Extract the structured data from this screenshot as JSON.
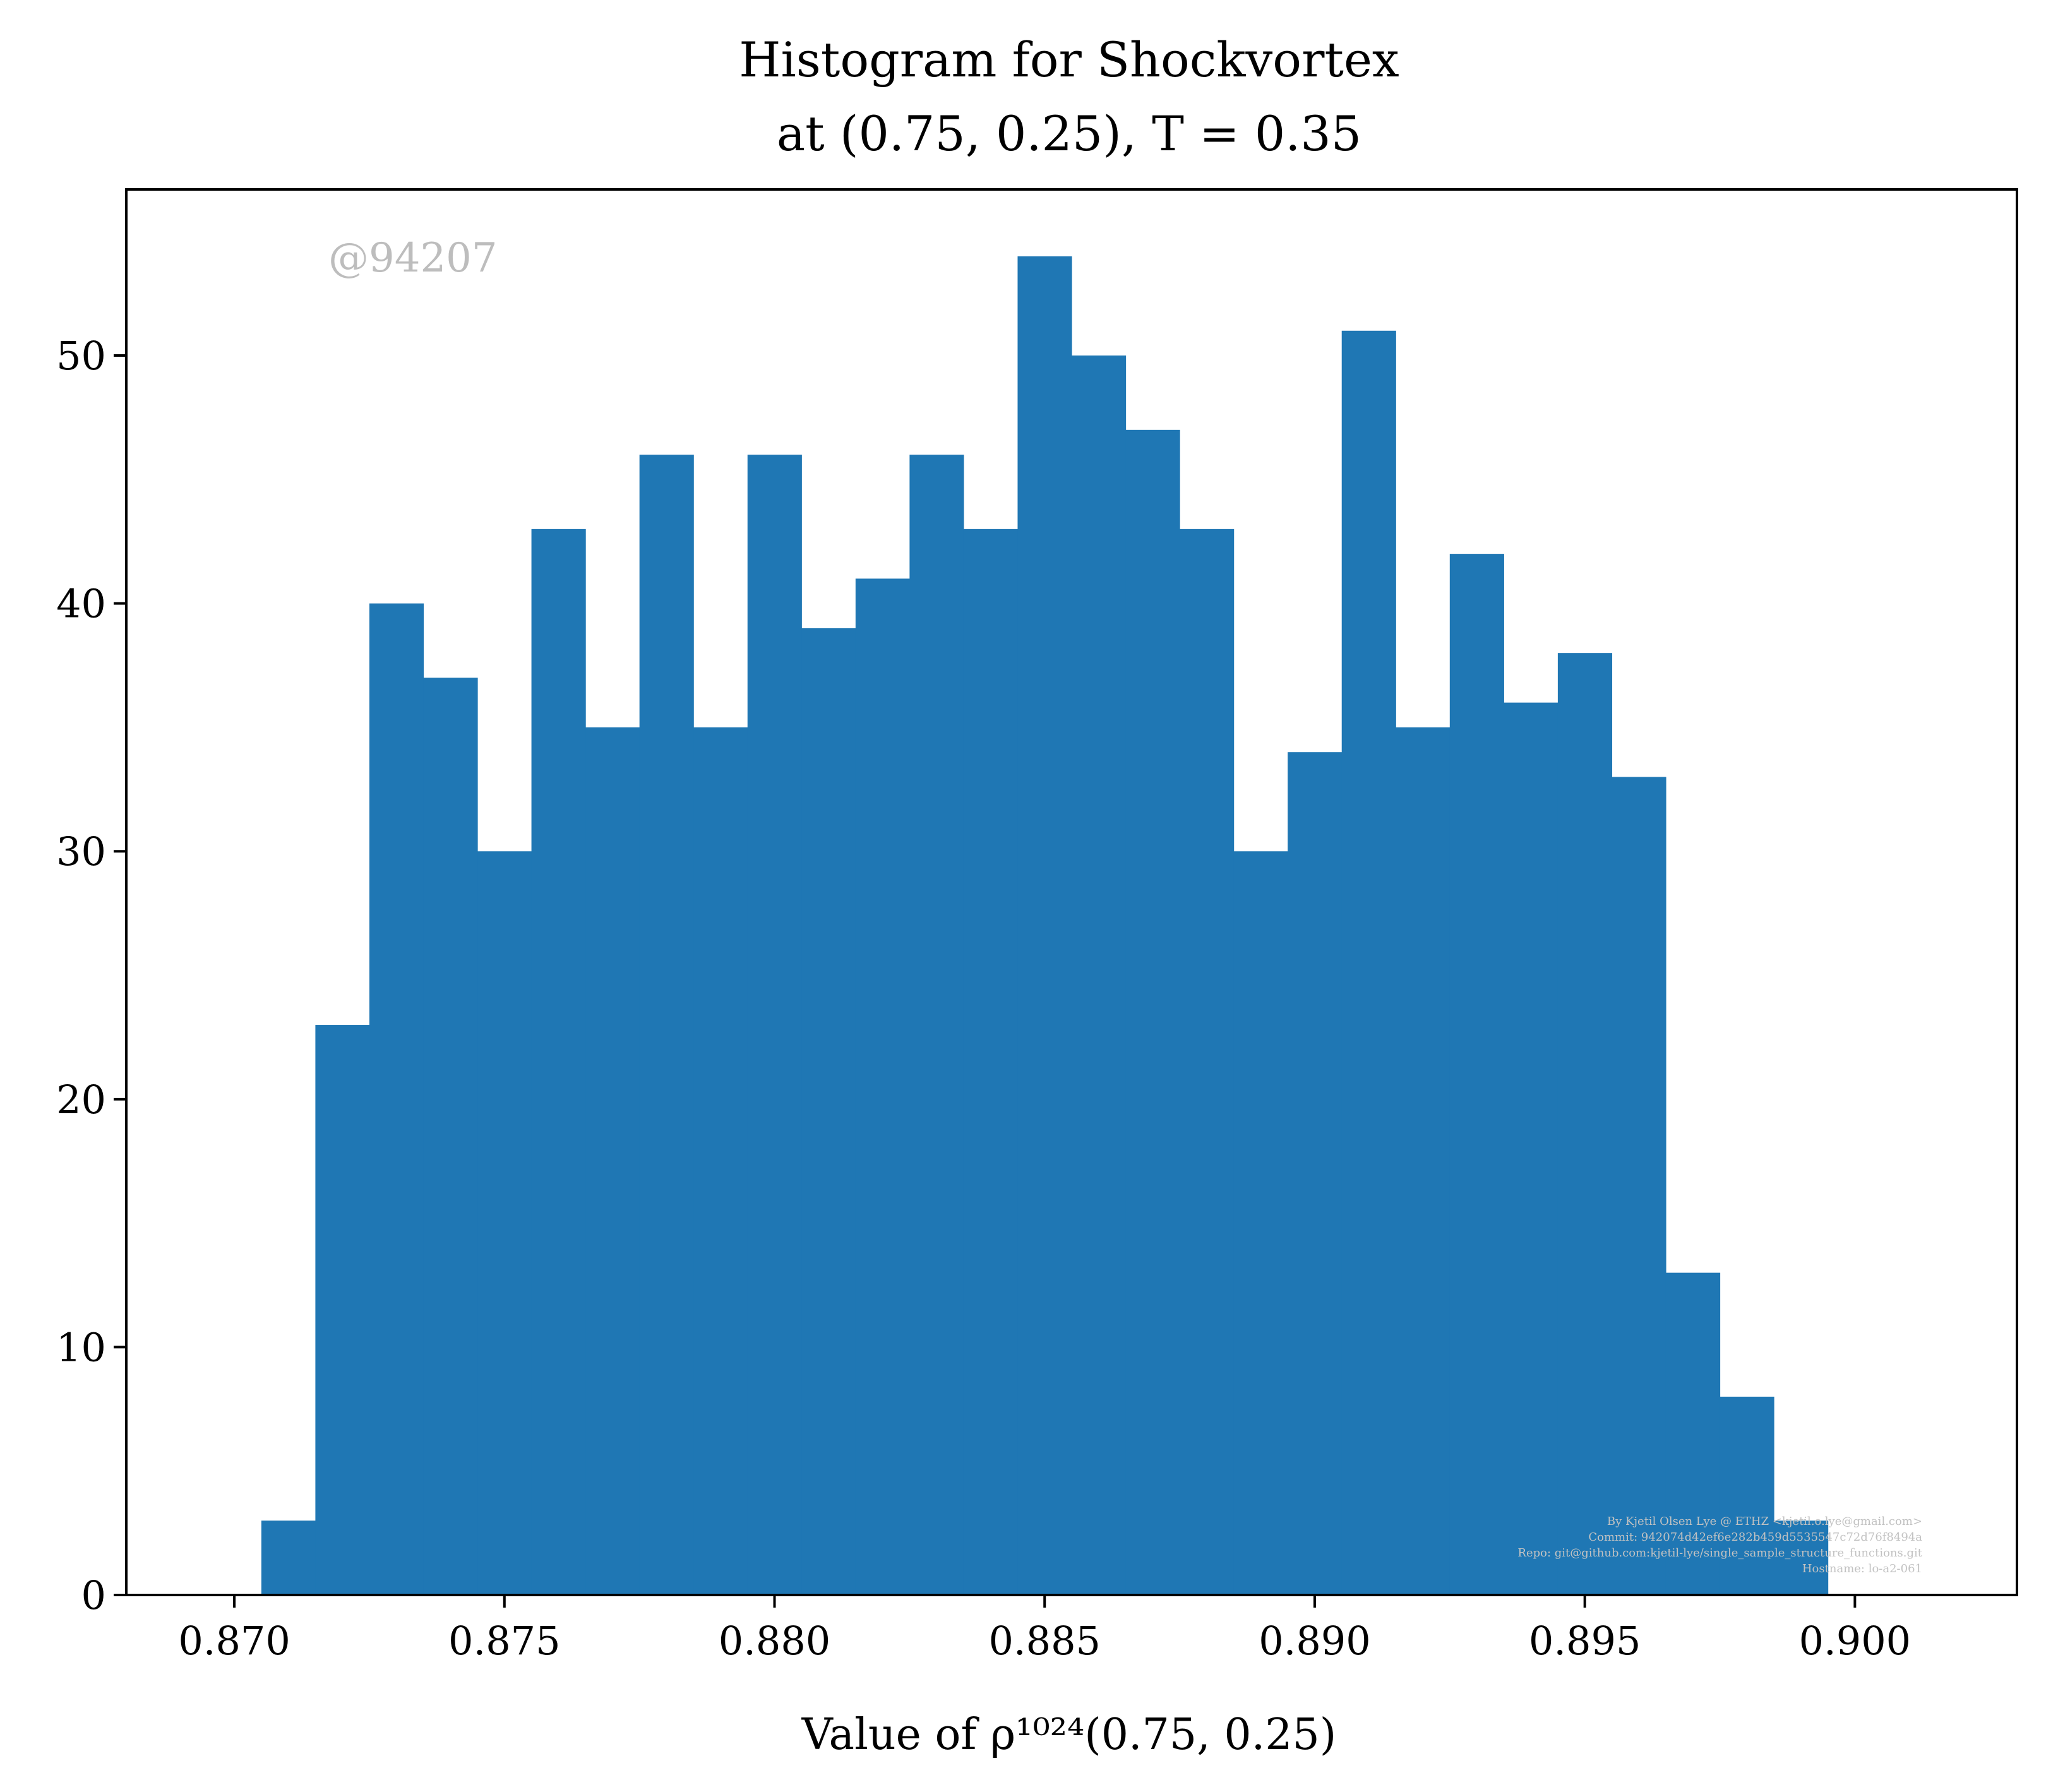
{
  "chart_data": {
    "type": "bar",
    "title_line1": "Histogram for Shockvortex",
    "title_line2": "at (0.75, 0.25), T = 0.35",
    "xlabel": "Value of ρ¹⁰²⁴(0.75, 0.25)",
    "ylabel": "",
    "xlim": [
      0.868,
      0.903
    ],
    "ylim": [
      0,
      56.7
    ],
    "x_ticks": [
      0.87,
      0.875,
      0.88,
      0.885,
      0.89,
      0.895,
      0.9
    ],
    "x_tick_labels": [
      "0.870",
      "0.875",
      "0.880",
      "0.885",
      "0.890",
      "0.895",
      "0.900"
    ],
    "y_ticks": [
      0,
      10,
      20,
      30,
      40,
      50
    ],
    "y_tick_labels": [
      "0",
      "10",
      "20",
      "30",
      "40",
      "50"
    ],
    "bin_start": 0.8705,
    "bin_width": 0.001,
    "values": [
      3,
      23,
      40,
      37,
      30,
      43,
      35,
      46,
      35,
      46,
      39,
      41,
      46,
      43,
      54,
      50,
      47,
      43,
      30,
      34,
      51,
      35,
      42,
      36,
      38,
      33,
      13,
      8,
      3
    ],
    "bar_color": "#1f77b4",
    "grid": false,
    "legend": "none",
    "watermark": "@94207",
    "footer_lines": [
      "By Kjetil Olsen Lye @ ETHZ <kjetil.o.lye@gmail.com>",
      "Commit: 942074d42ef6e282b459d5535547c72d76f8494a",
      "Repo: git@github.com:kjetil-lye/single_sample_structure_functions.git",
      "Hostname: lo-a2-061"
    ]
  }
}
